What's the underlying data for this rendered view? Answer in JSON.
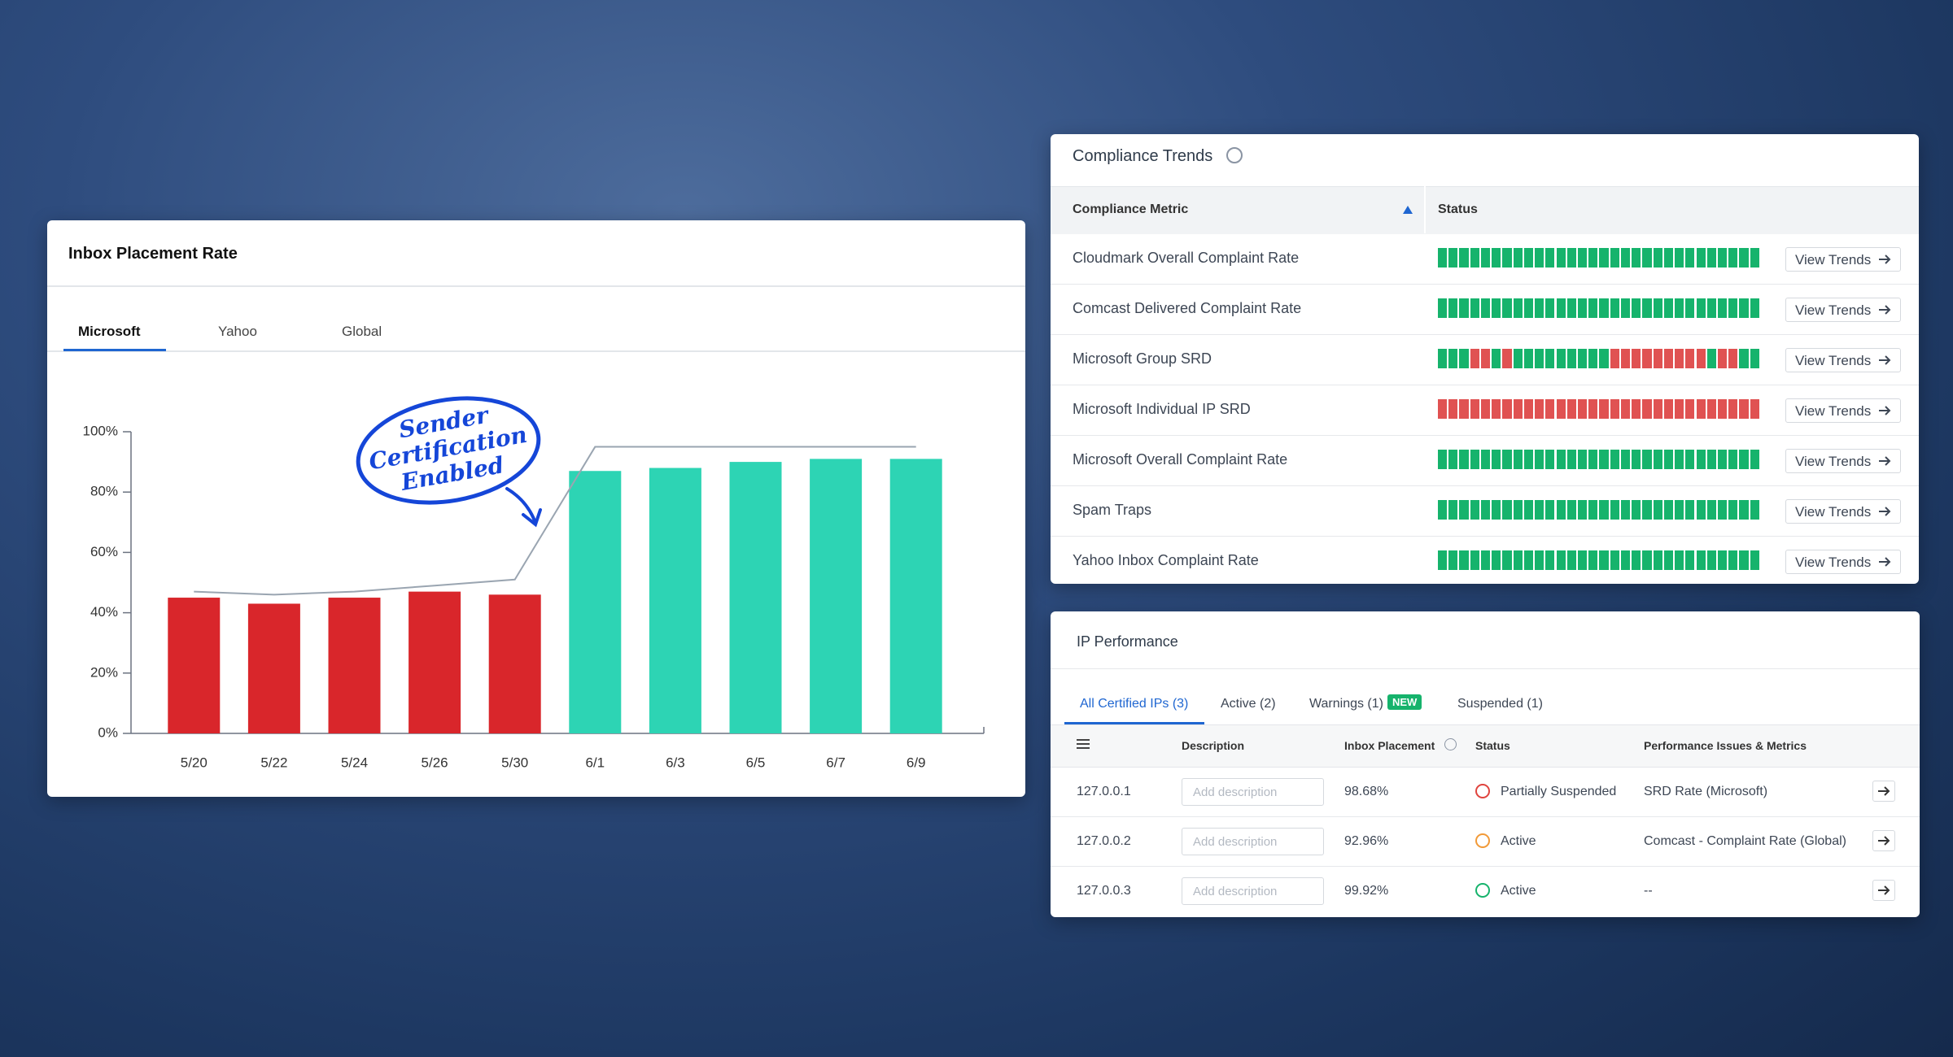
{
  "chart_data": {
    "type": "bar",
    "title": "Inbox Placement Rate",
    "tabs": [
      "Microsoft",
      "Yahoo",
      "Global"
    ],
    "active_tab": 0,
    "annotation": [
      "Sender",
      "Certification",
      "Enabled"
    ],
    "annotation_color": "#1546d8",
    "categories": [
      "5/20",
      "5/22",
      "5/24",
      "5/26",
      "5/30",
      "6/1",
      "6/3",
      "6/5",
      "6/7",
      "6/9"
    ],
    "values": [
      45,
      43,
      45,
      47,
      46,
      87,
      88,
      90,
      91,
      91
    ],
    "colors": [
      "#d9262b",
      "#d9262b",
      "#d9262b",
      "#d9262b",
      "#d9262b",
      "#2dd4b4",
      "#2dd4b4",
      "#2dd4b4",
      "#2dd4b4",
      "#2dd4b4"
    ],
    "trend": {
      "color": "#9aa5b1",
      "values": [
        47,
        46,
        47,
        49,
        51,
        95,
        95,
        95,
        95,
        95
      ]
    },
    "ylim": [
      0,
      100
    ],
    "yticks": [
      {
        "value": 0,
        "label": "0%"
      },
      {
        "value": 20,
        "label": "20%"
      },
      {
        "value": 40,
        "label": "40%"
      },
      {
        "value": 60,
        "label": "60%"
      },
      {
        "value": 80,
        "label": "80%"
      },
      {
        "value": 100,
        "label": "100%"
      }
    ]
  },
  "compliance": {
    "title": "Compliance Trends",
    "headers": [
      "Compliance Metric",
      "Status"
    ],
    "button_label": "View Trends",
    "colors": {
      "g": "#16b36c",
      "r": "#e05252"
    },
    "rows": [
      {
        "metric": "Cloudmark Overall Complaint Rate",
        "status": "gggggggggggggggggggggggggggggg"
      },
      {
        "metric": "Comcast Delivered Complaint Rate",
        "status": "gggggggggggggggggggggggggggggg"
      },
      {
        "metric": "Microsoft Group SRD",
        "status": "gggrrgrgggggggggrrrrrrrrrgrrgg"
      },
      {
        "metric": "Microsoft Individual IP SRD",
        "status": "rrrrrrrrrrrrrrrrrrrrrrrrrrrrrr"
      },
      {
        "metric": "Microsoft Overall Complaint Rate",
        "status": "gggggggggggggggggggggggggggggg"
      },
      {
        "metric": "Spam Traps",
        "status": "gggggggggggggggggggggggggggggg"
      },
      {
        "metric": "Yahoo Inbox Complaint Rate",
        "status": "gggggggggggggggggggggggggggggg"
      }
    ]
  },
  "ip_performance": {
    "title": "IP Performance",
    "tabs": [
      "All Certified IPs (3)",
      "Active (2)",
      "Warnings (1)",
      "Suspended (1)"
    ],
    "badge": "NEW",
    "headers": [
      "Description",
      "Inbox Placement",
      "Status",
      "Performance Issues & Metrics"
    ],
    "placeholder": "Add description",
    "rows": [
      {
        "ip": "127.0.0.1",
        "inbox_placement": "98.68%",
        "status": "Partially Suspended",
        "icon_color": "#e0443e",
        "issues": "SRD Rate (Microsoft)"
      },
      {
        "ip": "127.0.0.2",
        "inbox_placement": "92.96%",
        "status": "Active",
        "icon_color": "#f29a38",
        "issues": "Comcast - Complaint Rate (Global)"
      },
      {
        "ip": "127.0.0.3",
        "inbox_placement": "99.92%",
        "status": "Active",
        "icon_color": "#16b36c",
        "issues": "--"
      }
    ]
  }
}
